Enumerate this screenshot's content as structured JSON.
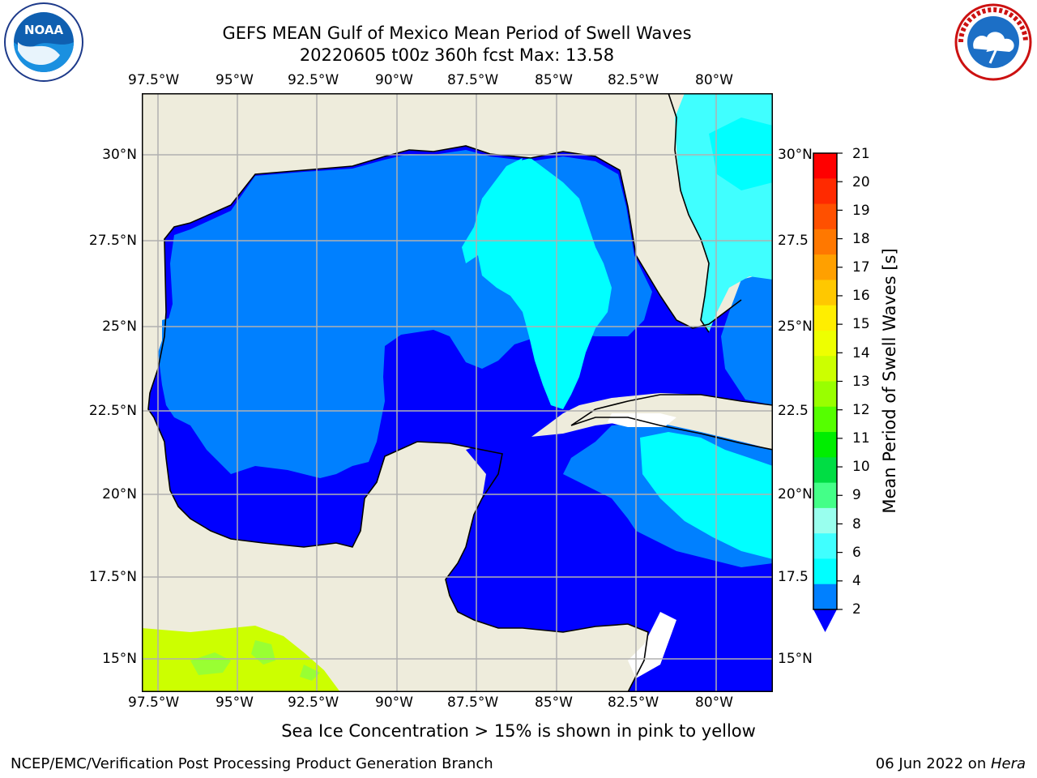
{
  "header": {
    "title": "GEFS MEAN Gulf of Mexico Mean Period of Swell Waves",
    "subtitle": "20220605 t00z 360h fcst   Max: 13.58"
  },
  "logos": {
    "left": {
      "name": "NOAA",
      "ring_text": "NATIONAL OCEANIC AND ATMOSPHERIC ADMINISTRATION · U.S. DEPARTMENT OF COMMERCE"
    },
    "right": {
      "name": "NATIONAL WEATHER SERVICE"
    }
  },
  "map": {
    "lon_labels": [
      "97.5°W",
      "95°W",
      "92.5°W",
      "90°W",
      "87.5°W",
      "85°W",
      "82.5°W",
      "80°W"
    ],
    "lat_labels_left": [
      "30°N",
      "27.5°N",
      "25°N",
      "22.5°N",
      "20°N",
      "17.5°N",
      "15°N"
    ],
    "lat_labels_right": [
      "30°N",
      "27.5",
      "25°N",
      "22.5",
      "20°N",
      "17.5",
      "15°N"
    ],
    "colors": {
      "land": "#eeecdc",
      "water_dark": "#0000ff",
      "water_mid": "#0080ff",
      "cyan": "#00ffff",
      "light_cyan": "#40ffff",
      "pacific_green": "#ccff00",
      "grid": "#b0b0b0"
    }
  },
  "colorbar": {
    "label": "Mean Period of Swell Waves [s]",
    "ticks": [
      "21",
      "20",
      "19",
      "18",
      "17",
      "16",
      "15",
      "14",
      "13",
      "12",
      "11",
      "10",
      "9",
      "8",
      "6",
      "4",
      "2"
    ],
    "colors_top_down": [
      "#ff0000",
      "#ff2a00",
      "#ff5000",
      "#ff7800",
      "#ffa000",
      "#ffc800",
      "#ffee00",
      "#eeff00",
      "#ccff00",
      "#99ff00",
      "#55ff00",
      "#00ee00",
      "#00dd44",
      "#44ff88",
      "#99ffee",
      "#40ffff",
      "#00ffff",
      "#0080ff"
    ],
    "extend_color": "#0000ff"
  },
  "footer": {
    "note": "Sea Ice Concentration > 15% is shown in pink to yellow",
    "left": "NCEP/EMC/Verification Post Processing Product Generation Branch",
    "right_date": "06 Jun 2022 on ",
    "right_machine": "Hera"
  }
}
